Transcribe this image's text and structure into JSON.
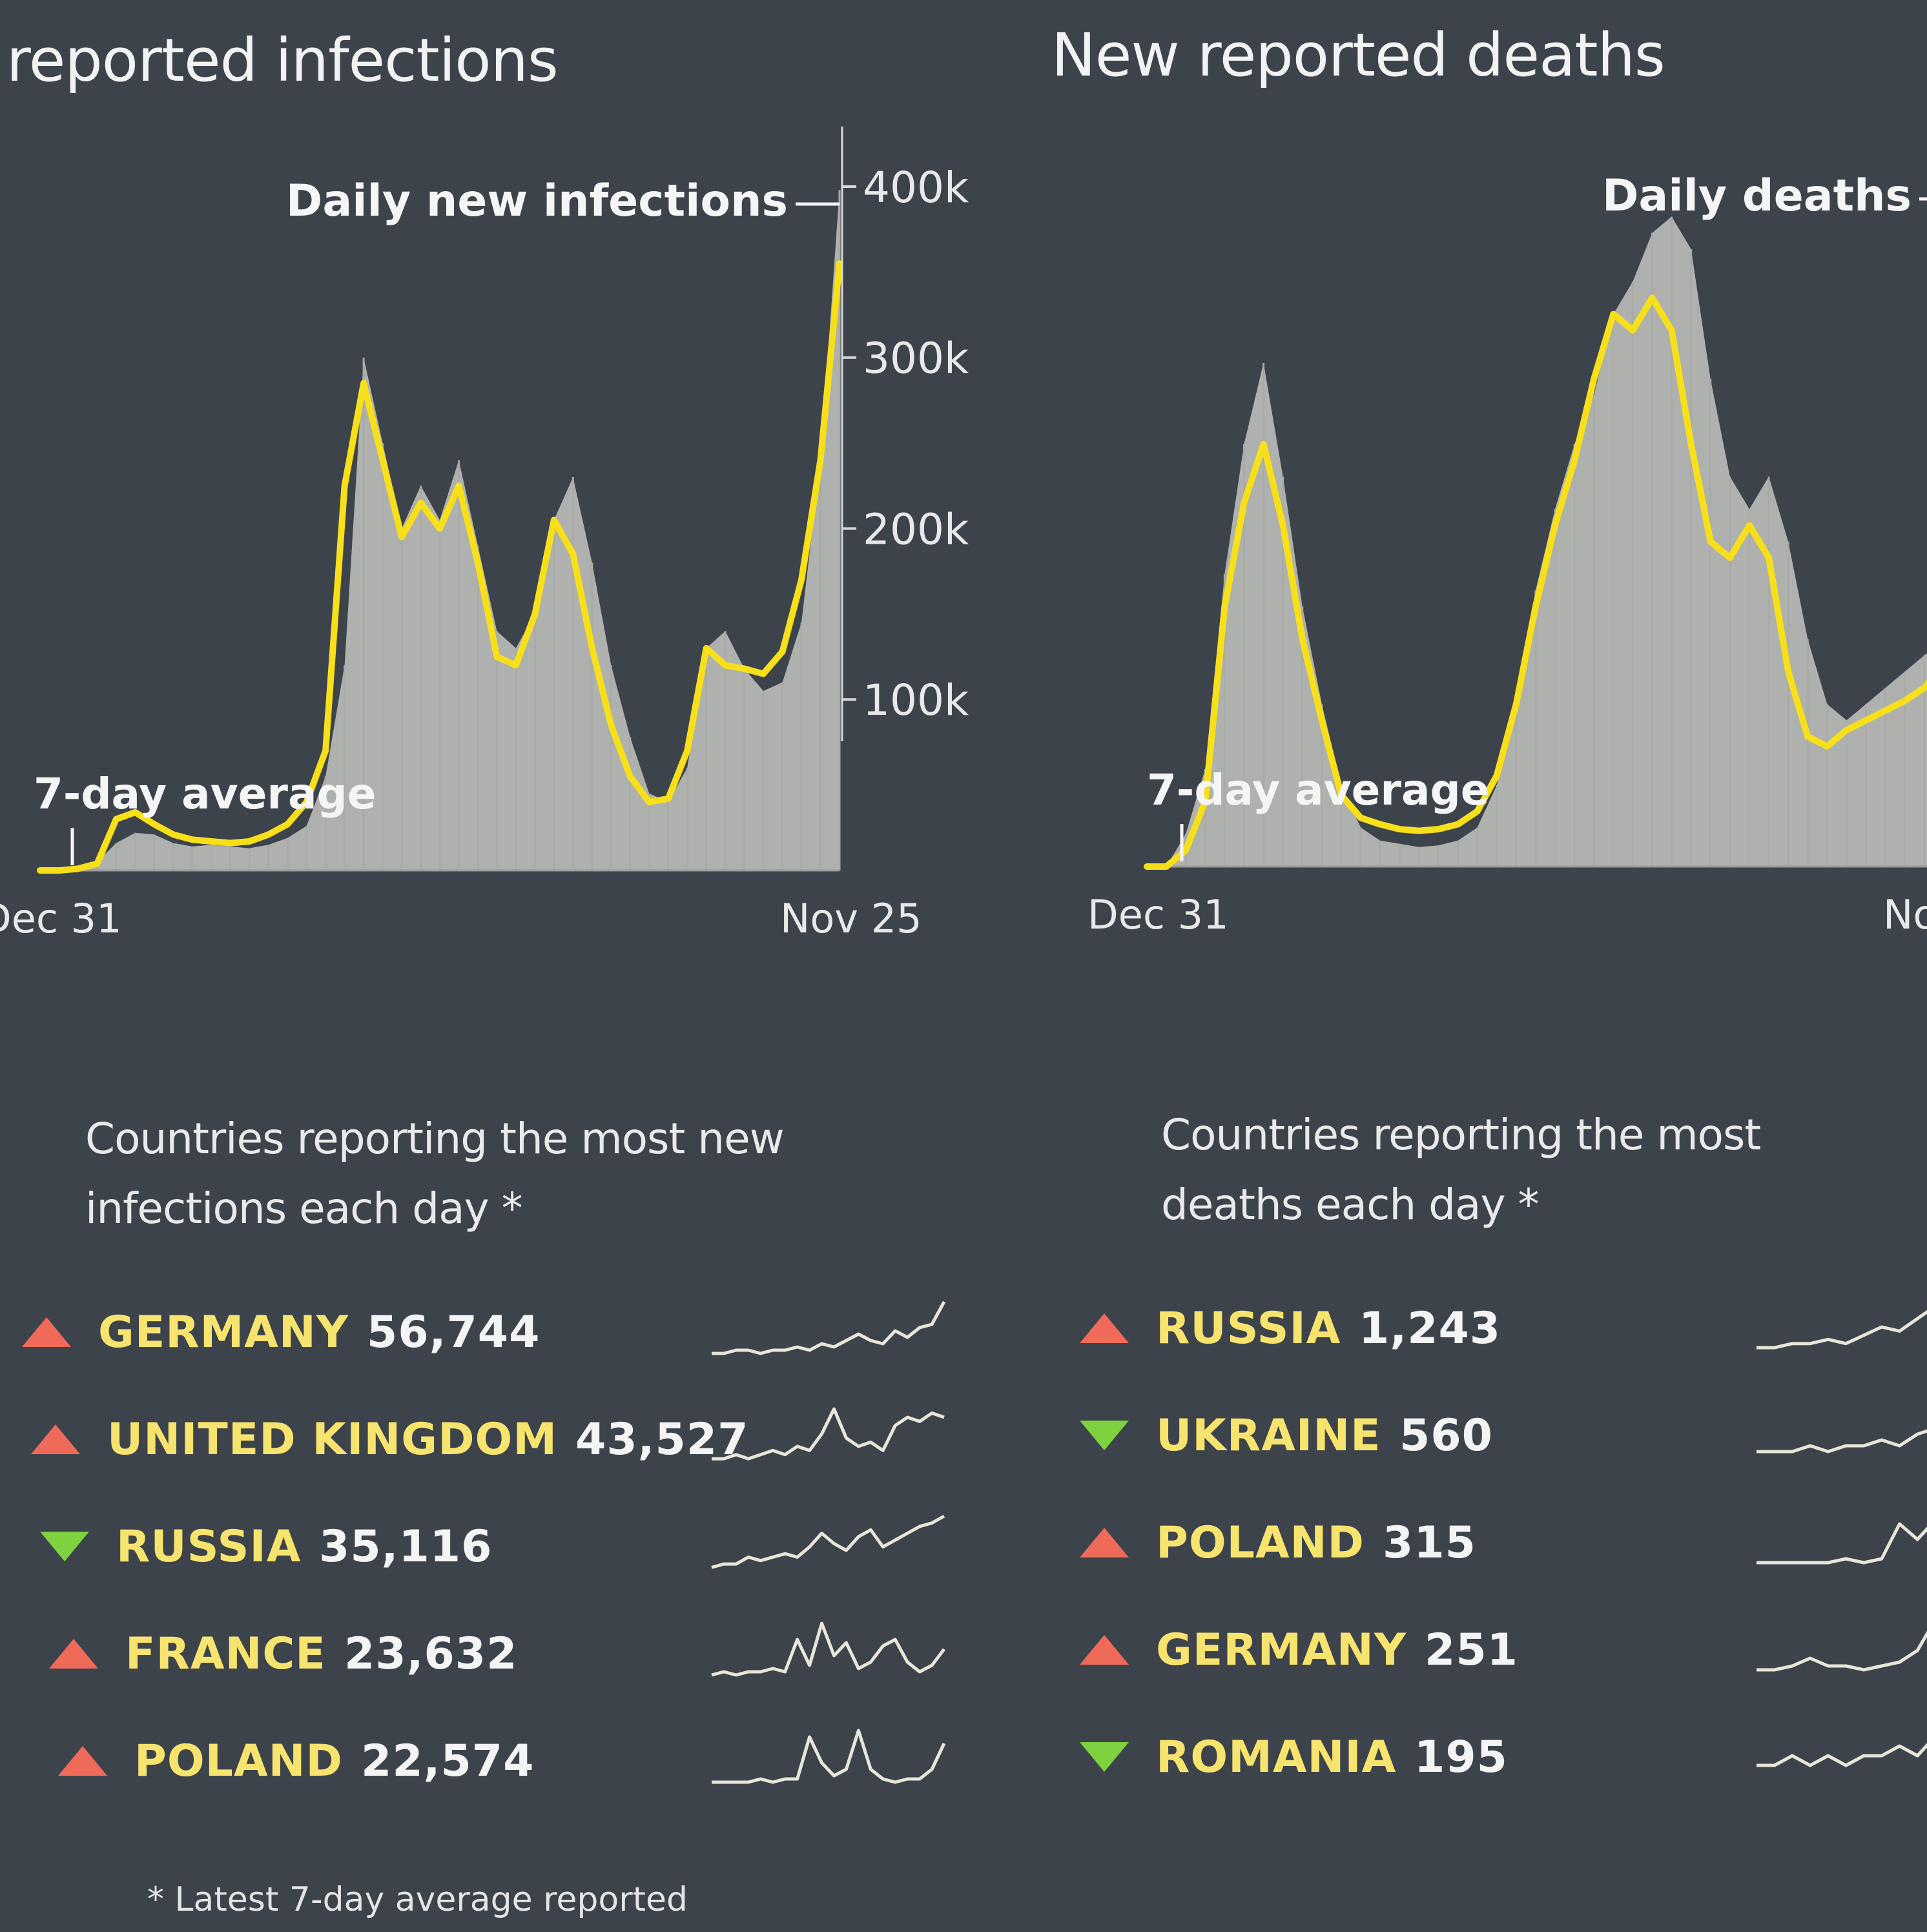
{
  "colors": {
    "background": "#3d434b",
    "avg_line": "#f7e01a",
    "daily_area": "#b9bbb6",
    "axis_text": "#e8e8e8",
    "up": "#f06a5a",
    "down": "#7ed13f",
    "name_text": "#f7e46e",
    "spark": "#e8e6d8"
  },
  "infections": {
    "title": "reported infections",
    "daily_label": "Daily new infections",
    "avg_label": "7-day average",
    "start_label": "Dec 31",
    "end_label": "Nov 25"
  },
  "deaths": {
    "title": "New reported deaths",
    "daily_label": "Daily deaths",
    "avg_label": "7-day average",
    "start_label": "Dec 31",
    "end_label": "No"
  },
  "chart_data": [
    {
      "type": "area",
      "title": "reported infections",
      "xlabel": "",
      "ylabel": "",
      "x_start": "Dec 31",
      "x_end": "Nov 25",
      "ylim": [
        0,
        420000
      ],
      "yticks": [
        100000,
        200000,
        300000,
        400000
      ],
      "ytick_labels": [
        "100k",
        "200k",
        "300k",
        "400k"
      ],
      "series": [
        {
          "name": "Daily new infections",
          "values": [
            0,
            0,
            2000,
            5000,
            16000,
            22000,
            21000,
            16000,
            14000,
            15000,
            14000,
            13000,
            15000,
            19000,
            26000,
            55000,
            120000,
            300000,
            250000,
            200000,
            225000,
            205000,
            240000,
            190000,
            140000,
            130000,
            150000,
            205000,
            230000,
            180000,
            120000,
            78000,
            45000,
            40000,
            60000,
            130000,
            140000,
            118000,
            105000,
            110000,
            145000,
            240000,
            398000
          ]
        },
        {
          "name": "7-day average",
          "values": [
            0,
            0,
            1000,
            4000,
            30000,
            34000,
            27000,
            21000,
            18000,
            17000,
            16000,
            17000,
            21000,
            27000,
            40000,
            70000,
            225000,
            285000,
            240000,
            195000,
            215000,
            200000,
            225000,
            180000,
            125000,
            120000,
            150000,
            205000,
            185000,
            130000,
            85000,
            55000,
            40000,
            42000,
            70000,
            130000,
            120000,
            118000,
            115000,
            128000,
            170000,
            240000,
            355000
          ]
        }
      ]
    },
    {
      "type": "area",
      "title": "New reported deaths",
      "xlabel": "",
      "ylabel": "",
      "x_start": "Dec 31",
      "x_end": "No",
      "ylim": [
        0,
        21500
      ],
      "yticks": [],
      "ytick_labels": [],
      "series": [
        {
          "name": "Daily deaths",
          "values": [
            0,
            0,
            1000,
            3000,
            9000,
            13000,
            15500,
            12000,
            8000,
            5000,
            2500,
            1200,
            800,
            700,
            600,
            650,
            800,
            1200,
            2500,
            5000,
            8500,
            11000,
            13000,
            14500,
            17000,
            18000,
            19500,
            20000,
            19000,
            15000,
            12000,
            11000,
            12000,
            10000,
            7000,
            5000,
            4500,
            5000,
            5500,
            6000,
            6500,
            7000,
            7500
          ]
        },
        {
          "name": "7-day average",
          "values": [
            0,
            0,
            500,
            2000,
            8000,
            11200,
            13000,
            10500,
            7000,
            4500,
            2200,
            1500,
            1300,
            1150,
            1100,
            1150,
            1300,
            1700,
            2800,
            5000,
            8000,
            10500,
            12500,
            15000,
            17000,
            16500,
            17500,
            16500,
            13000,
            10000,
            9500,
            10500,
            9500,
            6000,
            4000,
            3700,
            4200,
            4500,
            4800,
            5100,
            5500,
            6200,
            7000
          ]
        }
      ]
    }
  ],
  "infections_list": {
    "heading_line1": "Countries reporting the most new",
    "heading_line2": "infections each day *",
    "rows": [
      {
        "direction": "up",
        "name": "GERMANY",
        "value": "56,744",
        "spark": [
          2,
          2,
          3,
          3,
          2,
          3,
          3,
          4,
          3,
          5,
          4,
          6,
          8,
          6,
          5,
          9,
          7,
          10,
          11,
          18
        ]
      },
      {
        "direction": "up",
        "name": "UNITED KINGDOM",
        "value": "43,527",
        "spark": [
          2,
          2,
          3,
          2,
          3,
          4,
          3,
          5,
          4,
          8,
          14,
          7,
          5,
          6,
          4,
          10,
          12,
          11,
          13,
          12
        ]
      },
      {
        "direction": "down",
        "name": "RUSSIA",
        "value": "35,116",
        "spark": [
          2,
          3,
          3,
          5,
          4,
          5,
          6,
          5,
          8,
          12,
          9,
          7,
          11,
          13,
          8,
          10,
          12,
          14,
          15,
          17
        ]
      },
      {
        "direction": "up",
        "name": "FRANCE",
        "value": "23,632",
        "spark": [
          2,
          3,
          2,
          3,
          3,
          4,
          3,
          13,
          5,
          18,
          8,
          12,
          4,
          6,
          11,
          13,
          6,
          3,
          5,
          10
        ]
      },
      {
        "direction": "up",
        "name": "POLAND",
        "value": "22,574",
        "spark": [
          2,
          2,
          2,
          2,
          3,
          2,
          3,
          3,
          16,
          8,
          4,
          6,
          18,
          6,
          3,
          2,
          3,
          3,
          6,
          14
        ]
      }
    ]
  },
  "deaths_list": {
    "heading_line1": "Countries reporting the most",
    "heading_line2": "deaths each day *",
    "rows": [
      {
        "direction": "up",
        "name": "RUSSIA",
        "value": "1,243",
        "spark": [
          2,
          2,
          3,
          3,
          4,
          3,
          5,
          7,
          6,
          9,
          12,
          10,
          14,
          13
        ]
      },
      {
        "direction": "down",
        "name": "UKRAINE",
        "value": "560",
        "spark": [
          2,
          2,
          2,
          3,
          2,
          3,
          3,
          4,
          3,
          5,
          6,
          5,
          8,
          10
        ]
      },
      {
        "direction": "up",
        "name": "POLAND",
        "value": "315",
        "spark": [
          2,
          2,
          2,
          2,
          2,
          3,
          2,
          3,
          12,
          8,
          13,
          9,
          15,
          11
        ]
      },
      {
        "direction": "up",
        "name": "GERMANY",
        "value": "251",
        "spark": [
          2,
          2,
          3,
          5,
          3,
          3,
          2,
          3,
          4,
          7,
          15,
          8,
          3,
          2
        ]
      },
      {
        "direction": "down",
        "name": "ROMANIA",
        "value": "195",
        "spark": [
          2,
          2,
          3,
          2,
          3,
          2,
          3,
          3,
          4,
          3,
          5,
          4,
          6,
          5
        ]
      }
    ]
  },
  "footnote": "* Latest 7-day average reported"
}
